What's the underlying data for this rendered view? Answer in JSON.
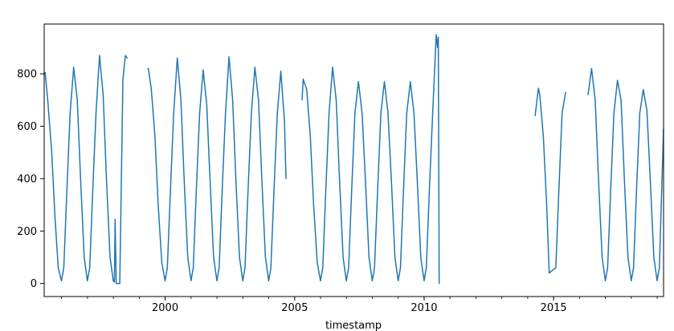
{
  "chart_data": {
    "type": "line",
    "title": "",
    "xlabel": "timestamp",
    "ylabel": "",
    "xlim": [
      "1995-05-01",
      "2019-04-01"
    ],
    "ylim": [
      -50,
      990
    ],
    "x_ticks": [
      "2000",
      "2005",
      "2010",
      "2015"
    ],
    "y_ticks": [
      "0",
      "200",
      "400",
      "600",
      "800"
    ],
    "y_tick_values": [
      0,
      200,
      400,
      600,
      800
    ],
    "grid": false,
    "legend": "none",
    "colors": {
      "series": "#1f77b4",
      "axis": "#000000",
      "background": "#ffffff"
    },
    "series": [
      {
        "name": "",
        "x": [
          "1995-05-01",
          "1995-05-15",
          "1995-06-20",
          "1995-08-15",
          "1995-10-01",
          "1995-11-15",
          "1995-12-31",
          "1996-02-01",
          "1996-03-15",
          "1996-05-01",
          "1996-06-20",
          "1996-08-10",
          "1996-09-25",
          "1996-11-15",
          "1996-12-31",
          "1997-02-01",
          "1997-03-15",
          "1997-05-01",
          "1997-06-20",
          "1997-08-10",
          "1997-09-25",
          "1997-11-15",
          "1997-12-31",
          "1998-01-15",
          "1998-01-25",
          "1998-02-10",
          "1998-04-01",
          "1998-05-15",
          "1998-06-20",
          "1998-07-15",
          "1999-05-01",
          "1999-05-10",
          "1999-06-20",
          "1999-08-10",
          "1999-09-25",
          "1999-11-15",
          "1999-12-31",
          "2000-02-01",
          "2000-03-15",
          "2000-05-01",
          "2000-06-20",
          "2000-08-10",
          "2000-09-25",
          "2000-11-15",
          "2000-12-31",
          "2001-02-01",
          "2001-03-15",
          "2001-05-01",
          "2001-06-20",
          "2001-08-10",
          "2001-09-25",
          "2001-11-15",
          "2001-12-31",
          "2002-02-01",
          "2002-03-15",
          "2002-05-01",
          "2002-06-20",
          "2002-08-10",
          "2002-09-25",
          "2002-11-15",
          "2002-12-31",
          "2003-02-01",
          "2003-03-15",
          "2003-05-01",
          "2003-06-20",
          "2003-08-10",
          "2003-09-25",
          "2003-11-15",
          "2003-12-31",
          "2004-02-01",
          "2004-03-15",
          "2004-05-01",
          "2004-06-20",
          "2004-08-10",
          "2004-09-01",
          "2005-04-15",
          "2005-05-01",
          "2005-06-20",
          "2005-08-10",
          "2005-09-25",
          "2005-11-15",
          "2005-12-31",
          "2006-02-01",
          "2006-03-15",
          "2006-05-01",
          "2006-06-20",
          "2006-08-10",
          "2006-09-25",
          "2006-11-15",
          "2006-12-31",
          "2007-02-01",
          "2007-03-15",
          "2007-05-01",
          "2007-06-20",
          "2007-08-10",
          "2007-09-25",
          "2007-11-15",
          "2007-12-31",
          "2008-02-01",
          "2008-03-15",
          "2008-05-01",
          "2008-06-20",
          "2008-08-10",
          "2008-09-25",
          "2008-11-15",
          "2008-12-31",
          "2009-02-01",
          "2009-03-15",
          "2009-05-01",
          "2009-06-20",
          "2009-08-10",
          "2009-09-25",
          "2009-11-15",
          "2009-12-31",
          "2010-02-01",
          "2010-03-15",
          "2010-05-01",
          "2010-06-20",
          "2010-07-10",
          "2010-07-20",
          "2010-08-01",
          "2014-04-15",
          "2014-06-01",
          "2014-06-20",
          "2014-08-10",
          "2014-09-25",
          "2014-11-01",
          "2015-02-01",
          "2015-03-15",
          "2015-05-01",
          "2015-06-20",
          "2016-05-01",
          "2016-06-20",
          "2016-08-10",
          "2016-09-25",
          "2016-11-15",
          "2016-12-31",
          "2017-02-01",
          "2017-03-15",
          "2017-05-01",
          "2017-06-20",
          "2017-08-10",
          "2017-09-25",
          "2017-11-15",
          "2017-12-31",
          "2018-02-01",
          "2018-03-15",
          "2018-05-01",
          "2018-06-20",
          "2018-08-10",
          "2018-09-25",
          "2018-11-15",
          "2018-12-31",
          "2019-02-01",
          "2019-04-01"
        ],
        "y": [
          800,
          805,
          700,
          500,
          250,
          60,
          10,
          60,
          350,
          650,
          825,
          700,
          400,
          100,
          10,
          60,
          350,
          650,
          870,
          720,
          400,
          100,
          10,
          5,
          245,
          0,
          0,
          780,
          870,
          860,
          820,
          820,
          740,
          560,
          300,
          80,
          10,
          60,
          350,
          650,
          860,
          700,
          400,
          100,
          10,
          60,
          350,
          650,
          815,
          680,
          400,
          100,
          10,
          60,
          350,
          650,
          865,
          700,
          400,
          100,
          10,
          60,
          350,
          650,
          825,
          700,
          400,
          100,
          10,
          60,
          350,
          650,
          810,
          620,
          400,
          700,
          780,
          740,
          560,
          300,
          80,
          10,
          60,
          350,
          650,
          825,
          700,
          400,
          100,
          10,
          60,
          350,
          650,
          770,
          650,
          400,
          100,
          10,
          60,
          350,
          650,
          770,
          650,
          400,
          100,
          10,
          60,
          350,
          650,
          770,
          650,
          400,
          100,
          10,
          60,
          350,
          650,
          950,
          900,
          940,
          0,
          640,
          745,
          720,
          560,
          300,
          40,
          60,
          350,
          650,
          730,
          720,
          820,
          700,
          400,
          100,
          10,
          60,
          350,
          650,
          775,
          700,
          400,
          100,
          10,
          60,
          350,
          650,
          740,
          660,
          400,
          100,
          10,
          60,
          590
        ]
      }
    ]
  }
}
